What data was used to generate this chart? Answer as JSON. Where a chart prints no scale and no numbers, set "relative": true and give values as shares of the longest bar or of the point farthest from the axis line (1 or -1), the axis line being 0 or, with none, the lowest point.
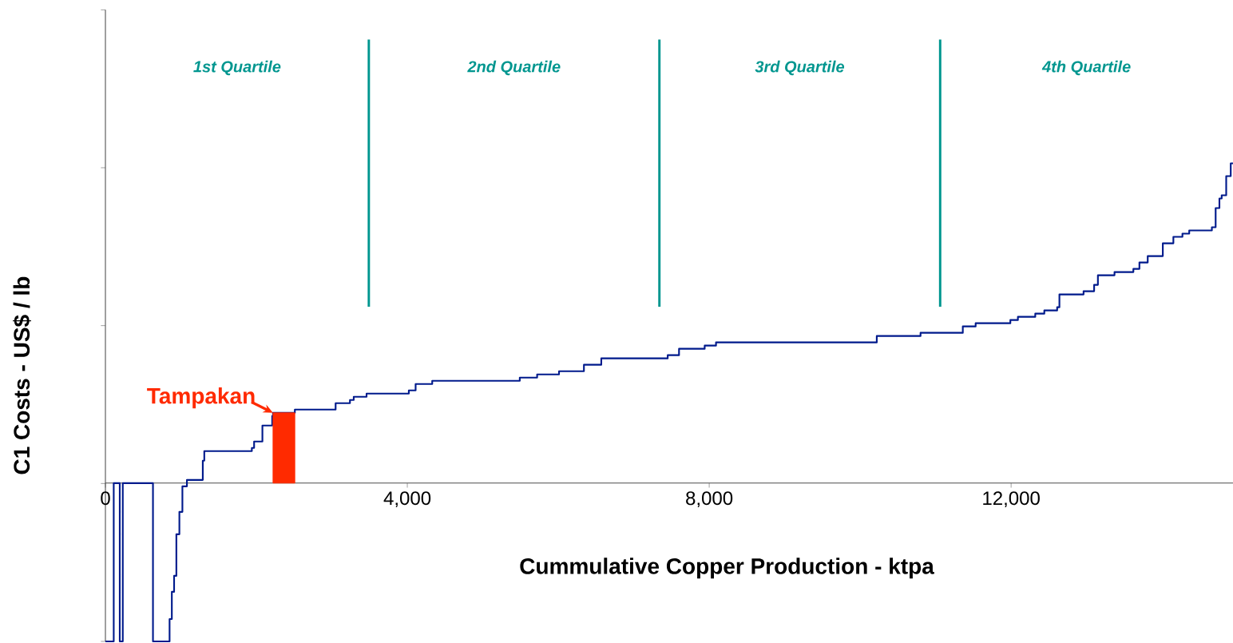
{
  "chart_data": {
    "type": "step",
    "relative": true,
    "xlabel": "Cummulative Copper Production - ktpa",
    "ylabel": "C1 Costs - US$ / lb",
    "xlim": [
      0,
      14940
    ],
    "xticks": [
      0,
      {
        "value": 4000,
        "label": "4,000"
      },
      {
        "value": 8000,
        "label": "8,000"
      },
      {
        "value": 12000,
        "label": "12,000"
      }
    ],
    "series": [
      {
        "color": "#001a8c",
        "x": [
          0,
          110,
          190,
          230,
          630,
          850,
          880,
          910,
          940,
          980,
          1020,
          1080,
          1240,
          1290,
          1310,
          1940,
          1970,
          2080,
          2210,
          2220,
          2510,
          2880,
          3050,
          3240,
          3290,
          3390,
          3460,
          4020,
          4110,
          4330,
          5490,
          5560,
          5720,
          5800,
          6010,
          6340,
          6400,
          6570,
          6640,
          7040,
          7450,
          7600,
          7940,
          8010,
          8090,
          8580,
          9330,
          10220,
          10700,
          10800,
          10880,
          11000,
          11360,
          11530,
          11720,
          11990,
          12090,
          12210,
          12320,
          12440,
          12550,
          12610,
          12640,
          12700,
          12960,
          13100,
          13150,
          13310,
          13370,
          13620,
          13700,
          13810,
          14010,
          14150,
          14270,
          14360,
          14660,
          14710,
          14760,
          14790,
          14850,
          14880,
          14910,
          14940
        ],
        "values": [
          -0.495,
          0,
          -0.495,
          0,
          -0.495,
          -0.425,
          -0.34,
          -0.29,
          -0.16,
          -0.09,
          -0.01,
          0.01,
          0.01,
          0.07,
          0.1,
          0.11,
          0.13,
          0.18,
          0.21,
          0.22,
          0.23,
          0.23,
          0.25,
          0.26,
          0.27,
          0.27,
          0.28,
          0.29,
          0.31,
          0.32,
          0.33,
          0.33,
          0.34,
          0.34,
          0.35,
          0.37,
          0.37,
          0.39,
          0.39,
          0.39,
          0.4,
          0.42,
          0.43,
          0.43,
          0.44,
          0.44,
          0.44,
          0.46,
          0.46,
          0.47,
          0.47,
          0.47,
          0.49,
          0.5,
          0.5,
          0.51,
          0.52,
          0.52,
          0.53,
          0.54,
          0.54,
          0.55,
          0.59,
          0.59,
          0.6,
          0.62,
          0.65,
          0.65,
          0.66,
          0.67,
          0.69,
          0.71,
          0.75,
          0.77,
          0.78,
          0.79,
          0.8,
          0.86,
          0.89,
          0.9,
          0.96,
          0.96,
          1.0,
          1.0
        ]
      },
      {
        "type": "area",
        "name": "Tampakan",
        "color": "#ff2a00",
        "x": [
          2220,
          2510
        ],
        "values": [
          0.22,
          0.22
        ]
      }
    ],
    "ref_lines": [
      {
        "axis": "x",
        "value": 3490,
        "color": "#00968f"
      },
      {
        "axis": "x",
        "value": 7340,
        "color": "#00968f"
      },
      {
        "axis": "x",
        "value": 11060,
        "color": "#00968f"
      }
    ],
    "annotations": [
      "1st Quartile",
      "2nd Quartile",
      "3rd  Quartile",
      "4th  Quartile"
    ]
  }
}
